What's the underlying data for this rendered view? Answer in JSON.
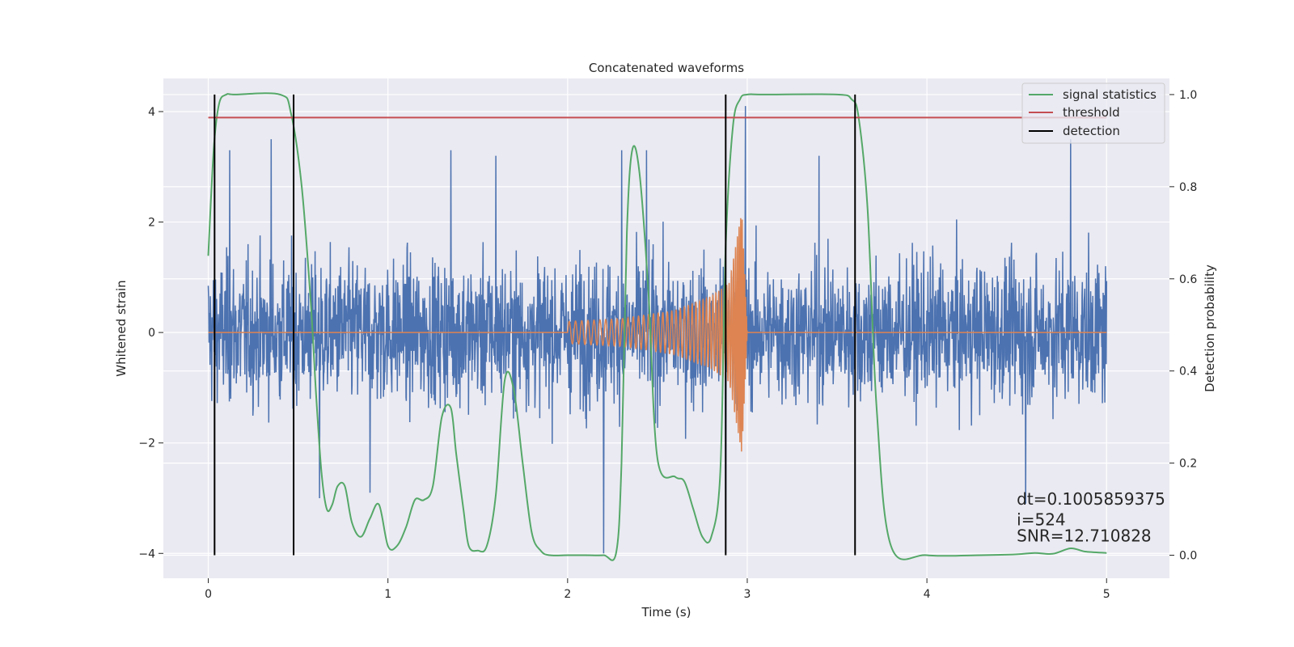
{
  "chart_data": {
    "type": "line",
    "title": "Concatenated waveforms",
    "xlabel": "Time (s)",
    "ylabel_left": "Whitened strain",
    "ylabel_right": "Detection probability",
    "xlim": [
      -0.25,
      5.35
    ],
    "ylim_left": [
      -4.45,
      4.6
    ],
    "ylim_right": [
      -0.05,
      1.035
    ],
    "x_ticks": [
      0,
      1,
      2,
      3,
      4,
      5
    ],
    "y_ticks_left": [
      -4,
      -2,
      0,
      2,
      4
    ],
    "y_ticks_right": [
      0.0,
      0.2,
      0.4,
      0.6,
      0.8,
      1.0
    ],
    "grid": true,
    "legend_position": "top-right",
    "series": [
      {
        "name": "",
        "axis": "left",
        "color": "#4c72b0",
        "description": "whitened strain samples",
        "x_range": [
          0,
          5
        ],
        "envelope_typical": 1.3,
        "spikes": [
          [
            0.12,
            3.3
          ],
          [
            0.35,
            3.5
          ],
          [
            0.62,
            -3.0
          ],
          [
            0.9,
            -2.9
          ],
          [
            1.35,
            3.3
          ],
          [
            1.6,
            3.2
          ],
          [
            2.2,
            -4.0
          ],
          [
            2.3,
            3.3
          ],
          [
            2.44,
            3.3
          ],
          [
            2.88,
            -4.0
          ],
          [
            2.99,
            4.1
          ],
          [
            3.4,
            3.2
          ],
          [
            4.55,
            -3.1
          ],
          [
            4.8,
            3.5
          ]
        ]
      },
      {
        "name": "",
        "axis": "left",
        "color": "#dd8452",
        "description": "injected chirp waveform",
        "x": [
          0,
          2.0,
          2.3,
          2.6,
          2.8,
          2.9,
          2.97,
          3.0,
          5.0
        ],
        "amplitude": [
          0,
          0.2,
          0.25,
          0.4,
          0.65,
          0.9,
          2.2,
          0,
          0
        ]
      },
      {
        "name": "signal statistics",
        "axis": "right",
        "color": "#55a868",
        "x": [
          0.0,
          0.03,
          0.06,
          0.1,
          0.15,
          0.4,
          0.46,
          0.52,
          0.57,
          0.6,
          0.63,
          0.66,
          0.69,
          0.72,
          0.76,
          0.8,
          0.85,
          0.9,
          0.95,
          1.0,
          1.05,
          1.1,
          1.15,
          1.2,
          1.25,
          1.3,
          1.35,
          1.38,
          1.42,
          1.45,
          1.5,
          1.55,
          1.6,
          1.65,
          1.7,
          1.75,
          1.8,
          1.85,
          1.9,
          2.0,
          2.1,
          2.2,
          2.27,
          2.3,
          2.33,
          2.36,
          2.4,
          2.45,
          2.5,
          2.6,
          2.65,
          2.7,
          2.75,
          2.8,
          2.85,
          2.88,
          2.92,
          2.96,
          3.0,
          3.1,
          3.5,
          3.58,
          3.62,
          3.67,
          3.72,
          3.8,
          4.0,
          4.3,
          4.5,
          4.6,
          4.7,
          4.8,
          4.88,
          5.0
        ],
        "y": [
          0.65,
          0.88,
          0.98,
          1.0,
          1.0,
          1.0,
          0.96,
          0.8,
          0.55,
          0.35,
          0.18,
          0.1,
          0.11,
          0.15,
          0.15,
          0.07,
          0.04,
          0.08,
          0.11,
          0.02,
          0.02,
          0.06,
          0.12,
          0.12,
          0.15,
          0.3,
          0.32,
          0.22,
          0.1,
          0.02,
          0.01,
          0.02,
          0.13,
          0.38,
          0.36,
          0.2,
          0.05,
          0.01,
          0.0,
          0.0,
          0.0,
          0.0,
          0.005,
          0.2,
          0.7,
          0.88,
          0.83,
          0.57,
          0.21,
          0.17,
          0.16,
          0.1,
          0.04,
          0.04,
          0.18,
          0.67,
          0.93,
          0.99,
          1.0,
          1.0,
          1.0,
          0.99,
          0.95,
          0.75,
          0.32,
          0.02,
          0.0,
          0.0,
          0.002,
          0.005,
          0.003,
          0.015,
          0.008,
          0.005
        ]
      },
      {
        "name": "threshold",
        "axis": "right",
        "color": "#c44e52",
        "x": [
          0,
          5
        ],
        "y": [
          0.95,
          0.95
        ]
      },
      {
        "name": "detection",
        "axis": "right",
        "color": "#000000",
        "vlines": [
          0.035,
          0.475,
          2.88,
          3.6
        ],
        "y_extent": [
          0.0,
          1.0
        ]
      }
    ],
    "annotations": [
      {
        "text": "dt=0.1005859375",
        "x": 4.5,
        "y_right": 0.11
      },
      {
        "text": " i=524",
        "x": 4.5,
        "y_right": 0.065
      },
      {
        "text": "SNR=12.710828",
        "x": 4.5,
        "y_right": 0.03
      }
    ]
  }
}
